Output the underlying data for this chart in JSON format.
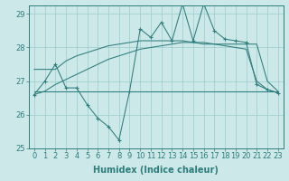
{
  "x": [
    0,
    1,
    2,
    3,
    4,
    5,
    6,
    7,
    8,
    9,
    10,
    11,
    12,
    13,
    14,
    15,
    16,
    17,
    18,
    19,
    20,
    21,
    22,
    23
  ],
  "line_zigzag": [
    26.6,
    27.0,
    27.5,
    26.8,
    26.8,
    26.3,
    25.9,
    25.65,
    25.25,
    26.7,
    28.55,
    28.3,
    28.75,
    28.2,
    29.3,
    28.2,
    29.3,
    28.5,
    28.25,
    28.2,
    28.15,
    26.9,
    26.75,
    26.65
  ],
  "line_trend_upper": [
    27.35,
    27.35,
    27.35,
    27.6,
    27.75,
    27.85,
    27.95,
    28.05,
    28.1,
    28.15,
    28.2,
    28.2,
    28.2,
    28.2,
    28.2,
    28.15,
    28.1,
    28.1,
    28.1,
    28.1,
    28.1,
    28.1,
    27.0,
    26.7
  ],
  "line_horiz": [
    26.7,
    26.7,
    26.7,
    26.7,
    26.7,
    26.7,
    26.7,
    26.7,
    26.7,
    26.7,
    26.7,
    26.7,
    26.7,
    26.7,
    26.7,
    26.7,
    26.7,
    26.7,
    26.7,
    26.7,
    26.7,
    26.7,
    26.7,
    26.7
  ],
  "line_trend_lower": [
    26.6,
    26.7,
    26.9,
    27.05,
    27.2,
    27.35,
    27.5,
    27.65,
    27.75,
    27.85,
    27.95,
    28.0,
    28.05,
    28.1,
    28.15,
    28.15,
    28.15,
    28.1,
    28.05,
    28.0,
    27.95,
    27.0,
    26.75,
    26.65
  ],
  "color": "#2e7d7d",
  "bg_color": "#cce8e8",
  "grid_color": "#99cccc",
  "xlabel": "Humidex (Indice chaleur)",
  "ylim": [
    25.0,
    29.25
  ],
  "xlim": [
    -0.5,
    23.5
  ],
  "yticks": [
    25,
    26,
    27,
    28,
    29
  ],
  "xticks": [
    0,
    1,
    2,
    3,
    4,
    5,
    6,
    7,
    8,
    9,
    10,
    11,
    12,
    13,
    14,
    15,
    16,
    17,
    18,
    19,
    20,
    21,
    22,
    23
  ],
  "axis_fontsize": 6.5,
  "tick_fontsize": 6.0,
  "xlabel_fontsize": 7.0
}
